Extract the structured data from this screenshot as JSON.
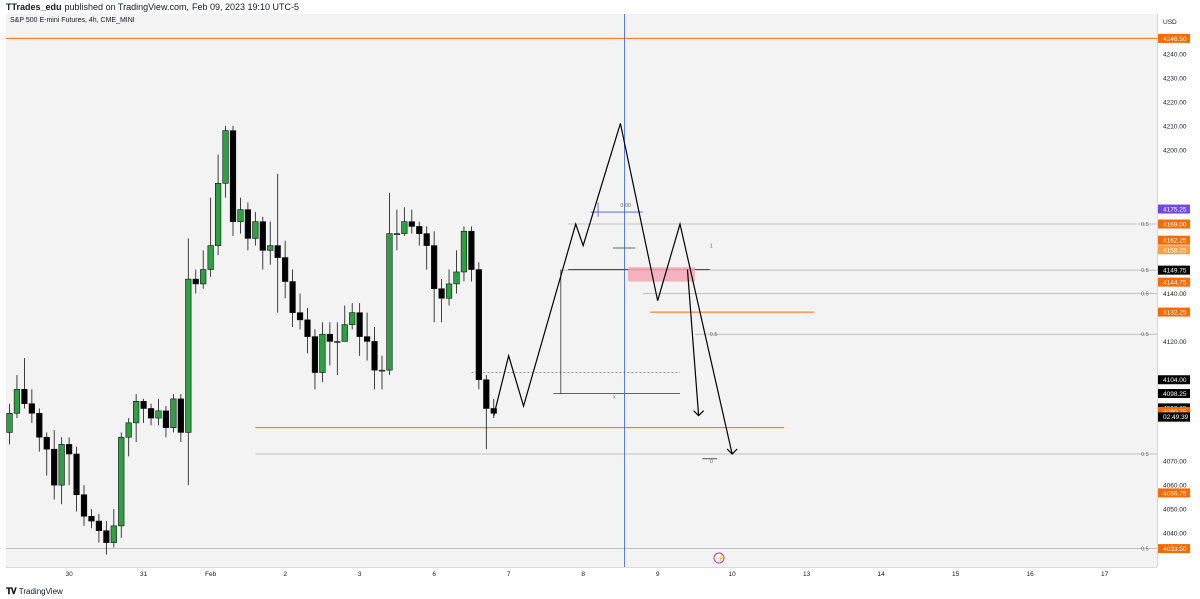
{
  "header": {
    "author": "TTrades_edu",
    "published": "published on TradingView.com,",
    "date": "Feb 09, 2023 19:10 UTC-5"
  },
  "symbol": "S&P 500 E-mini Futures, 4h, CME_MINI",
  "footer": {
    "brand": "TradingView",
    "logo": "tradingview-logo-icon"
  },
  "colors": {
    "up": "#2ea043",
    "down": "#000000",
    "orange": "#ff6a00",
    "blue": "#3b5bdb",
    "purple": "#7048e8",
    "pink": "#f3a6b5"
  },
  "chart_data": {
    "type": "candlestick",
    "currency": "USD",
    "y_ticks": [
      "4240.00",
      "4230.00",
      "4220.00",
      "4210.00",
      "4200.00",
      "4140.00",
      "4120.00",
      "4070.00",
      "4060.00",
      "4050.00",
      "4040.00"
    ],
    "y_tick_values": [
      4240,
      4230,
      4220,
      4210,
      4200,
      4140,
      4120,
      4070,
      4060,
      4050,
      4040
    ],
    "ylim": [
      4030,
      4250
    ],
    "x_tick_labels": [
      "30",
      "31",
      "Feb",
      "2",
      "3",
      "6",
      "7",
      "8",
      "9",
      "10",
      "13",
      "14",
      "15",
      "16",
      "17"
    ],
    "x_tick_index": [
      8,
      18,
      27,
      37,
      47,
      57,
      67,
      77,
      87,
      97,
      107,
      117,
      127,
      137,
      147
    ],
    "candles": [
      [
        4082,
        4090,
        4094,
        4077
      ],
      [
        4090,
        4100,
        4106,
        4088
      ],
      [
        4100,
        4094,
        4113,
        4092
      ],
      [
        4094,
        4090,
        4100,
        4086
      ],
      [
        4090,
        4080,
        4092,
        4074
      ],
      [
        4080,
        4075,
        4082,
        4064
      ],
      [
        4075,
        4060,
        4083,
        4054
      ],
      [
        4060,
        4077,
        4080,
        4052
      ],
      [
        4077,
        4073,
        4080,
        4060
      ],
      [
        4073,
        4056,
        4076,
        4049
      ],
      [
        4056,
        4047,
        4060,
        4043
      ],
      [
        4047,
        4045,
        4050,
        4042
      ],
      [
        4045,
        4041,
        4048,
        4036
      ],
      [
        4041,
        4036,
        4045,
        4031
      ],
      [
        4036,
        4043,
        4050,
        4034
      ],
      [
        4043,
        4080,
        4082,
        4038
      ],
      [
        4080,
        4086,
        4088,
        4072
      ],
      [
        4086,
        4095,
        4098,
        4078
      ],
      [
        4095,
        4092,
        4096,
        4086
      ],
      [
        4092,
        4088,
        4094,
        4085
      ],
      [
        4088,
        4091,
        4096,
        4085
      ],
      [
        4091,
        4084,
        4093,
        4080
      ],
      [
        4084,
        4096,
        4098,
        4082
      ],
      [
        4096,
        4082,
        4098,
        4078
      ],
      [
        4082,
        4146,
        4163,
        4060
      ],
      [
        4146,
        4144,
        4150,
        4140
      ],
      [
        4144,
        4150,
        4158,
        4142
      ],
      [
        4150,
        4160,
        4180,
        4147
      ],
      [
        4160,
        4186,
        4198,
        4156
      ],
      [
        4186,
        4208,
        4210,
        4180
      ],
      [
        4208,
        4170,
        4210,
        4164
      ],
      [
        4170,
        4175,
        4180,
        4165
      ],
      [
        4175,
        4163,
        4178,
        4158
      ],
      [
        4163,
        4170,
        4174,
        4160
      ],
      [
        4170,
        4158,
        4172,
        4150
      ],
      [
        4158,
        4160,
        4170,
        4152
      ],
      [
        4160,
        4155,
        4190,
        4132
      ],
      [
        4155,
        4145,
        4162,
        4138
      ],
      [
        4145,
        4132,
        4150,
        4126
      ],
      [
        4132,
        4129,
        4140,
        4125
      ],
      [
        4129,
        4122,
        4134,
        4115
      ],
      [
        4122,
        4107,
        4125,
        4100
      ],
      [
        4107,
        4123,
        4128,
        4103
      ],
      [
        4123,
        4120,
        4128,
        4110
      ],
      [
        4120,
        4120,
        4128,
        4106
      ],
      [
        4120,
        4127,
        4135,
        4120
      ],
      [
        4127,
        4132,
        4136,
        4125
      ],
      [
        4132,
        4122,
        4136,
        4114
      ],
      [
        4122,
        4120,
        4132,
        4112
      ],
      [
        4120,
        4108,
        4126,
        4100
      ],
      [
        4108,
        4108,
        4114,
        4100
      ],
      [
        4108,
        4165,
        4182,
        4106
      ],
      [
        4165,
        4165,
        4175,
        4158
      ],
      [
        4165,
        4170,
        4176,
        4164
      ],
      [
        4170,
        4168,
        4175,
        4165
      ],
      [
        4168,
        4165,
        4170,
        4160
      ],
      [
        4165,
        4160,
        4168,
        4150
      ],
      [
        4160,
        4142,
        4166,
        4128
      ],
      [
        4142,
        4138,
        4146,
        4128
      ],
      [
        4138,
        4144,
        4150,
        4135
      ],
      [
        4144,
        4149,
        4158,
        4140
      ],
      [
        4149,
        4166,
        4168,
        4145
      ],
      [
        4166,
        4150,
        4168,
        4145
      ],
      [
        4150,
        4104,
        4153,
        4100
      ],
      [
        4104,
        4092,
        4106,
        4075
      ],
      [
        4092,
        4090,
        4096,
        4088
      ]
    ],
    "projection_path": [
      [
        65,
        4089
      ],
      [
        67,
        4114
      ],
      [
        69,
        4093
      ],
      [
        76,
        4169
      ],
      [
        77,
        4160
      ],
      [
        82,
        4211
      ],
      [
        87,
        4137
      ],
      [
        90,
        4169
      ],
      [
        97,
        4073
      ]
    ],
    "levels": [
      {
        "price": 4246.5,
        "label": "4246.50",
        "color": "#ff6a00"
      },
      {
        "price": 4175.25,
        "label": "4175.25",
        "color": "#7048e8"
      },
      {
        "price": 4169.0,
        "label": "4169.00",
        "color": "#ff6a00"
      },
      {
        "price": 4162.25,
        "label": "4162.25",
        "color": "#ff6a00"
      },
      {
        "price": 4158.25,
        "label": "4158.25",
        "color": "#ff9f43"
      },
      {
        "price": 4149.75,
        "label": "4149.75",
        "color": "#000000"
      },
      {
        "price": 4144.75,
        "label": "4144.75",
        "color": "#ff6a00"
      },
      {
        "price": 4132.25,
        "label": "4132.25",
        "color": "#ff6a00"
      },
      {
        "price": 4104.0,
        "label": "4104.00",
        "color": "#000000"
      },
      {
        "price": 4098.25,
        "label": "4098.25",
        "color": "#000000"
      },
      {
        "price": 4092.25,
        "label": "4092.25",
        "color": "#000000"
      },
      {
        "price": 4090.75,
        "label": "4090.75",
        "color": "#ff6a00"
      },
      {
        "price": 4088.25,
        "label": "4088.25",
        "color": "#ff6a00"
      },
      {
        "price": 4056.75,
        "label": "4056.75",
        "color": "#ff6a00"
      },
      {
        "price": 4033.5,
        "label": "4033.50",
        "color": "#ff6a00"
      }
    ],
    "countdown": "02:49:39",
    "fib_labels": [
      "0.5",
      "0.5",
      "0.5",
      "0.5",
      "0.5",
      "0.5",
      "0:00",
      "1",
      "0.5",
      "0",
      "x"
    ],
    "vertical_line_index": 82
  }
}
